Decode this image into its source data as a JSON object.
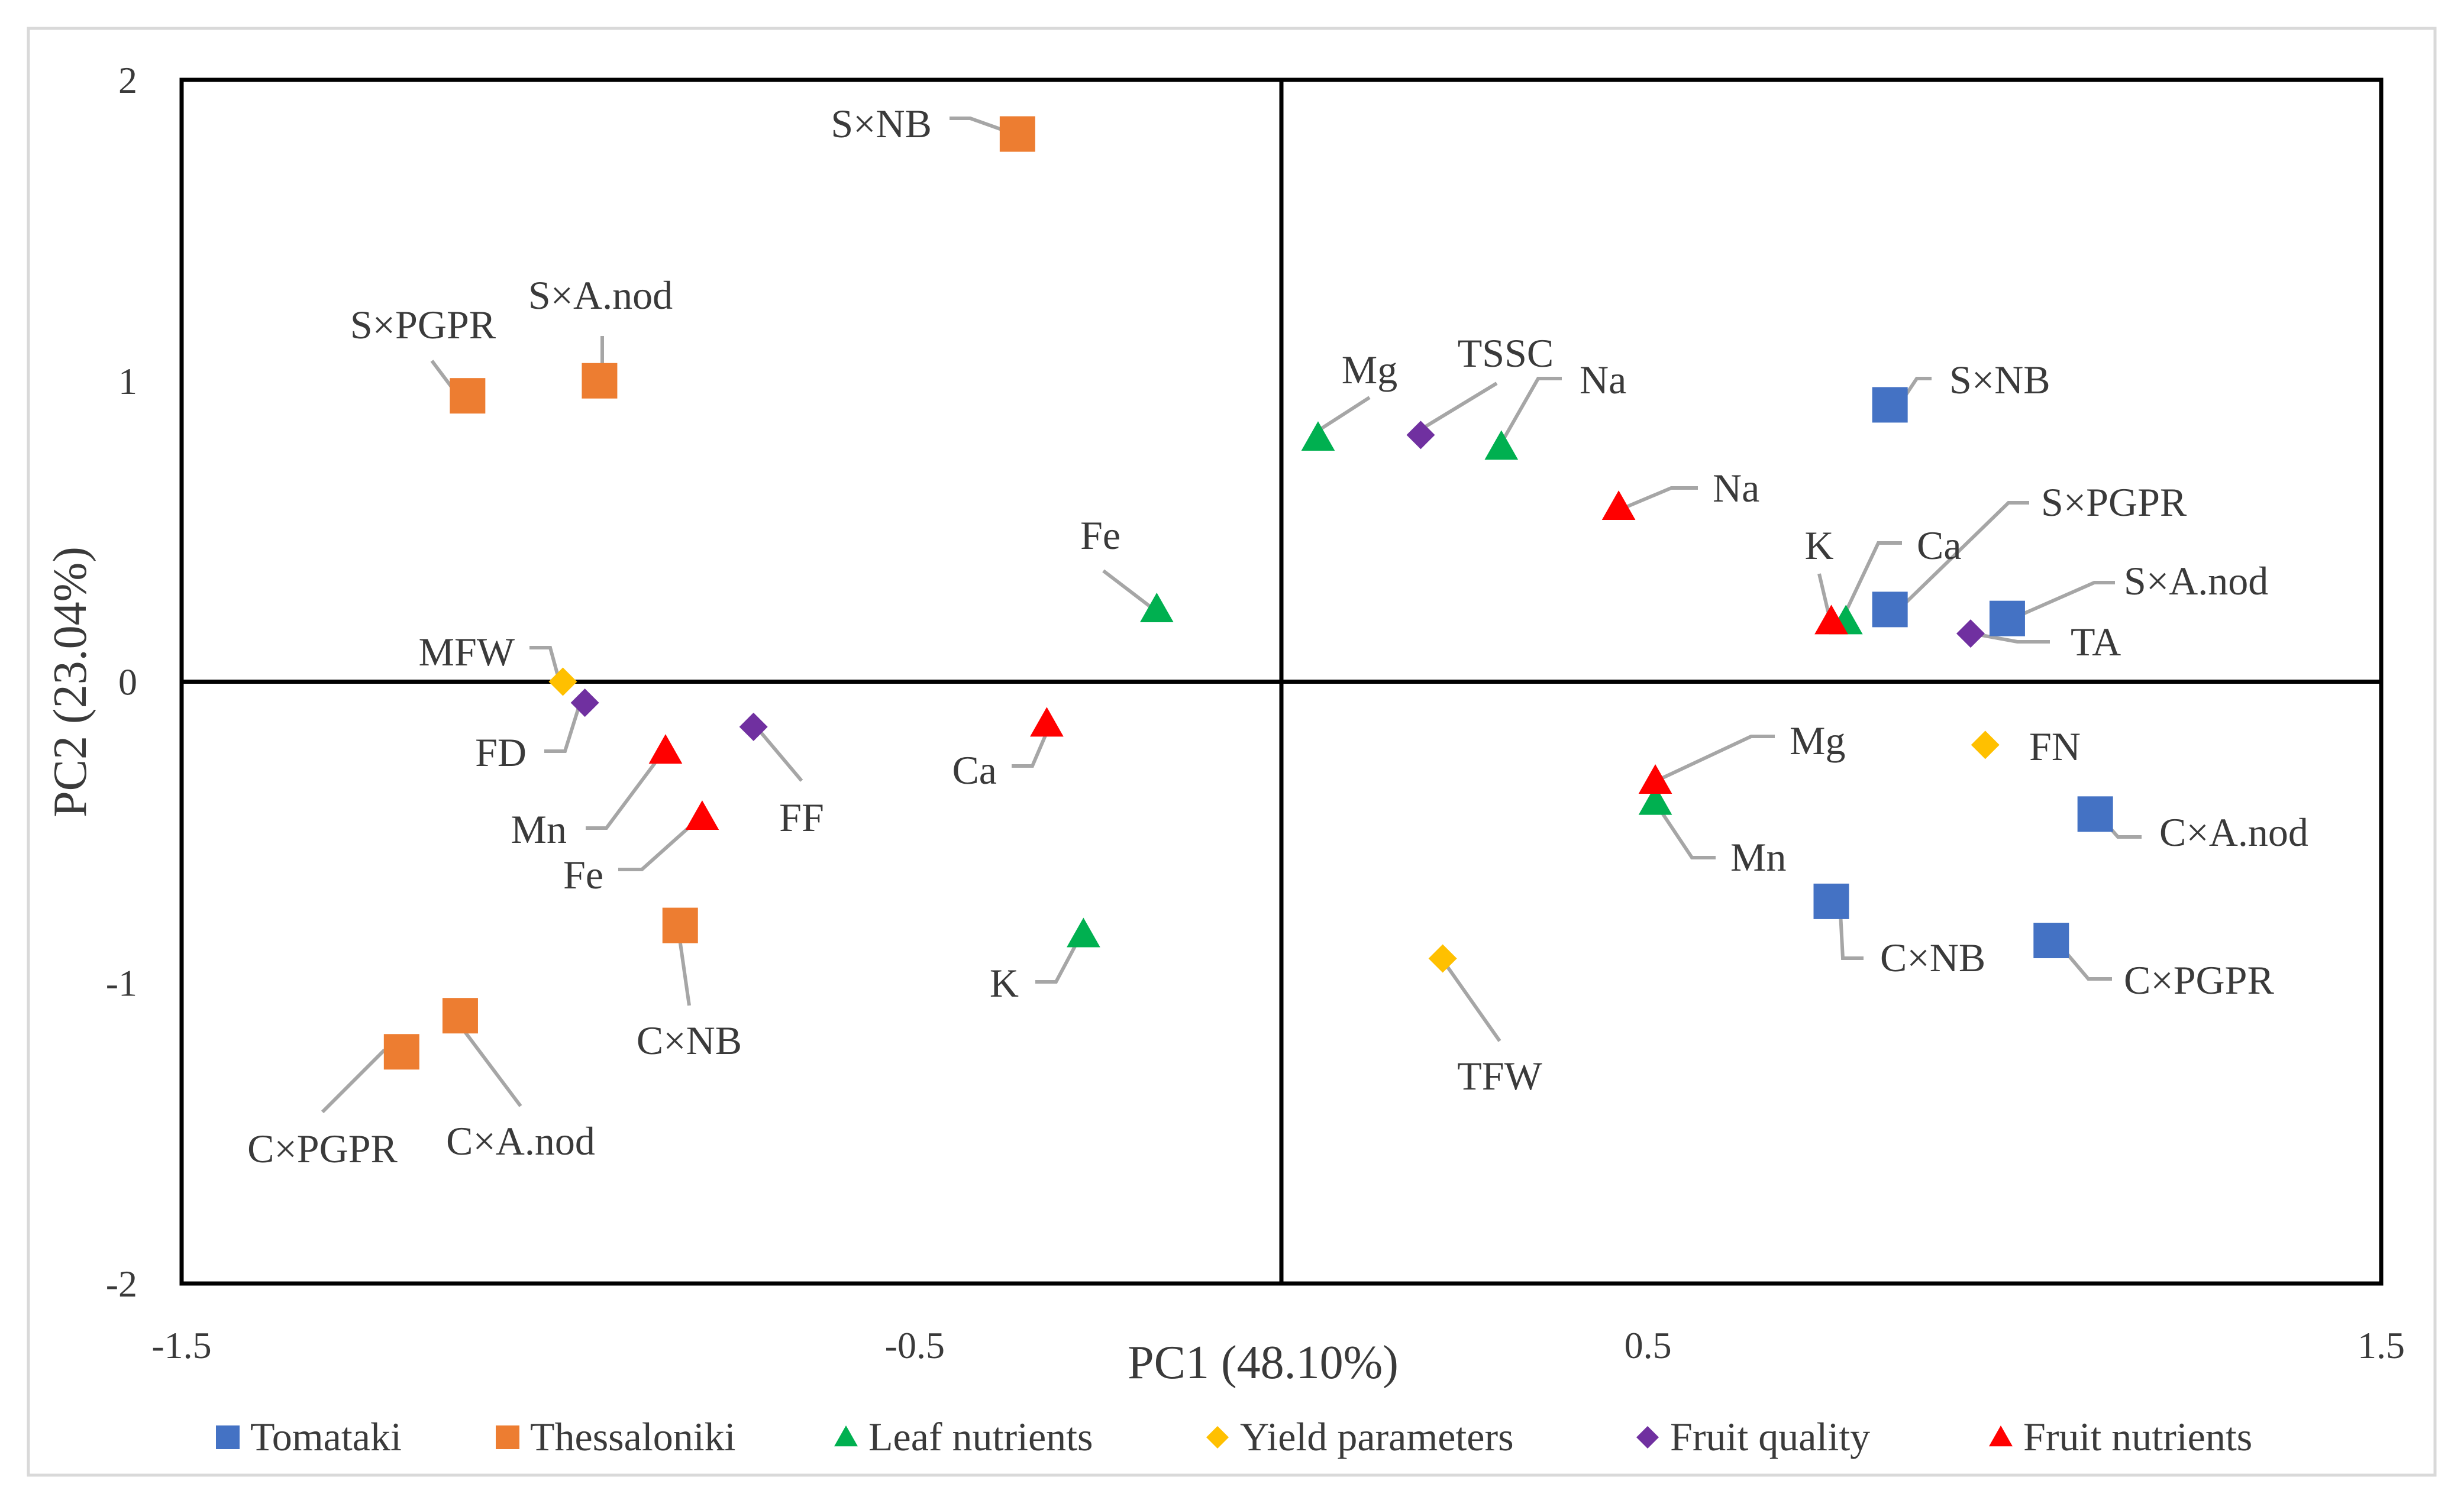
{
  "chart_data": {
    "type": "scatter",
    "title": "",
    "xlabel": "PC1 (48.10%)",
    "ylabel": "PC2 (23.04%)",
    "xlim": [
      -1.5,
      1.5
    ],
    "ylim": [
      -2,
      2
    ],
    "x_ticks": [
      {
        "v": -1.5,
        "label": "-1.5"
      },
      {
        "v": -0.5,
        "label": "-0.5"
      },
      {
        "v": 0.5,
        "label": "0.5"
      },
      {
        "v": 1.5,
        "label": "1.5"
      }
    ],
    "y_ticks": [
      {
        "v": 2,
        "label": "2"
      },
      {
        "v": 1,
        "label": "1"
      },
      {
        "v": 0,
        "label": "0"
      },
      {
        "v": -1,
        "label": "-1"
      },
      {
        "v": -2,
        "label": "-2"
      }
    ],
    "legend_position": "bottom",
    "series": [
      {
        "name": "Tomataki",
        "marker": "square",
        "color": "#4472C4",
        "points": [
          {
            "label": "S×NB",
            "x": 0.83,
            "y": 0.92
          },
          {
            "label": "S×PGPR",
            "x": 0.83,
            "y": 0.24
          },
          {
            "label": "S×A.nod",
            "x": 0.99,
            "y": 0.21
          },
          {
            "label": "C×A.nod",
            "x": 1.11,
            "y": -0.44
          },
          {
            "label": "C×NB",
            "x": 0.75,
            "y": -0.73
          },
          {
            "label": "C×PGPR",
            "x": 1.05,
            "y": -0.86
          }
        ]
      },
      {
        "name": "Thessaloniki",
        "marker": "square",
        "color": "#ED7D31",
        "points": [
          {
            "label": "S×NB",
            "x": -0.36,
            "y": 1.82
          },
          {
            "label": "S×PGPR",
            "x": -1.11,
            "y": 0.95
          },
          {
            "label": "S×A.nod",
            "x": -0.93,
            "y": 1.0
          },
          {
            "label": "C×NB",
            "x": -0.82,
            "y": -0.81
          },
          {
            "label": "C×A.nod",
            "x": -1.12,
            "y": -1.11
          },
          {
            "label": "C×PGPR",
            "x": -1.2,
            "y": -1.23
          }
        ]
      },
      {
        "name": "Leaf nutrients",
        "marker": "triangle",
        "color": "#00B050",
        "points": [
          {
            "label": "Mg",
            "x": 0.05,
            "y": 0.81
          },
          {
            "label": "Na",
            "x": 0.3,
            "y": 0.78
          },
          {
            "label": "Fe",
            "x": -0.17,
            "y": 0.24
          },
          {
            "label": "Ca",
            "x": 0.77,
            "y": 0.2
          },
          {
            "label": "Mn",
            "x": 0.51,
            "y": -0.4
          },
          {
            "label": "K",
            "x": -0.27,
            "y": -0.84
          }
        ]
      },
      {
        "name": "Yield parameters",
        "marker": "diamond",
        "color": "#FFC000",
        "points": [
          {
            "label": "MFW",
            "x": -0.98,
            "y": 0.0
          },
          {
            "label": "FN",
            "x": 0.96,
            "y": -0.21
          },
          {
            "label": "TFW",
            "x": 0.22,
            "y": -0.92
          }
        ]
      },
      {
        "name": "Fruit quality",
        "marker": "diamond",
        "color": "#7030A0",
        "points": [
          {
            "label": "TSSC",
            "x": 0.19,
            "y": 0.82
          },
          {
            "label": "TA",
            "x": 0.94,
            "y": 0.16
          },
          {
            "label": "FD",
            "x": -0.95,
            "y": -0.07
          },
          {
            "label": "FF",
            "x": -0.72,
            "y": -0.15
          }
        ]
      },
      {
        "name": "Fruit nutrients",
        "marker": "triangle",
        "color": "#FF0000",
        "points": [
          {
            "label": "Na",
            "x": 0.46,
            "y": 0.58
          },
          {
            "label": "K",
            "x": 0.75,
            "y": 0.2
          },
          {
            "label": "Mg",
            "x": 0.51,
            "y": -0.33
          },
          {
            "label": "Ca",
            "x": -0.32,
            "y": -0.14
          },
          {
            "label": "Mn",
            "x": -0.84,
            "y": -0.23
          },
          {
            "label": "Fe",
            "x": -0.79,
            "y": -0.45
          }
        ]
      }
    ]
  }
}
